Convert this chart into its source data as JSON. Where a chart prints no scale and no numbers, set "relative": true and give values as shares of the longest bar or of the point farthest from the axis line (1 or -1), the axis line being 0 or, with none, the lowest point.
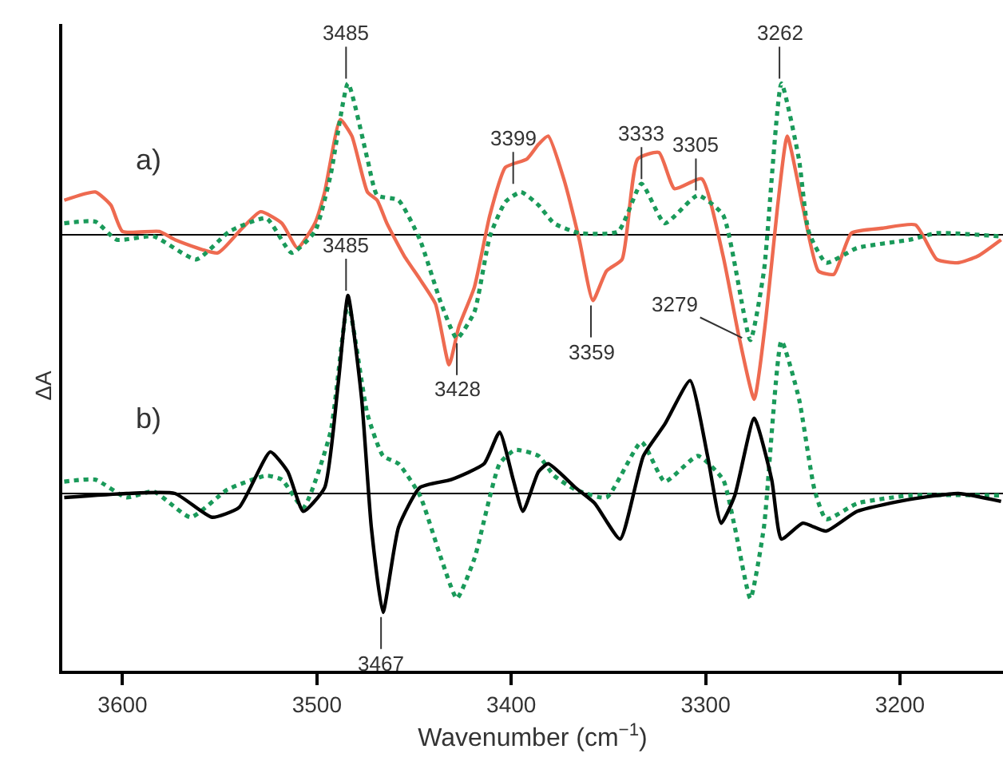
{
  "chart_data": [
    {
      "type": "line",
      "relative": true,
      "ylabel": "ΔA",
      "xlim": [
        3631,
        3147
      ],
      "tick_labels": false,
      "annotations": [
        "a)",
        {
          "text": "3485",
          "x": 3485,
          "y": 0.92
        },
        {
          "text": "3399",
          "x": 3399,
          "y": 0.28
        },
        {
          "text": "3333",
          "x": 3333,
          "y": 0.31
        },
        {
          "text": "3305",
          "x": 3305,
          "y": 0.24
        },
        {
          "text": "3262",
          "x": 3262,
          "y": 0.92
        },
        {
          "text": "3428",
          "x": 3428,
          "y": -0.63
        },
        {
          "text": "3359",
          "x": 3359,
          "y": -0.4
        },
        {
          "text": "3279",
          "x": 3279,
          "y": -0.64
        }
      ],
      "series": [
        {
          "color": "#ee6a50",
          "line_style": "solid",
          "x": [
            3630,
            3614,
            3606,
            3600,
            3581,
            3573,
            3551,
            3540,
            3529,
            3518,
            3510,
            3501,
            3496,
            3488,
            3482,
            3474,
            3469,
            3464,
            3455,
            3447,
            3439,
            3432,
            3427,
            3419,
            3411,
            3403,
            3392,
            3386,
            3381,
            3373,
            3365,
            3358,
            3351,
            3343,
            3335,
            3324,
            3316,
            3302,
            3291,
            3283,
            3275,
            3269,
            3263,
            3258,
            3250,
            3242,
            3234,
            3225,
            3209,
            3192,
            3181,
            3170,
            3160,
            3148
          ],
          "values": [
            0.21,
            0.26,
            0.18,
            0.02,
            0.02,
            -0.03,
            -0.11,
            0.02,
            0.14,
            0.07,
            -0.08,
            0.07,
            0.26,
            0.7,
            0.6,
            0.26,
            0.21,
            0.07,
            -0.13,
            -0.27,
            -0.42,
            -0.79,
            -0.56,
            -0.32,
            0.12,
            0.41,
            0.46,
            0.55,
            0.6,
            0.34,
            -0.03,
            -0.4,
            -0.22,
            -0.15,
            0.46,
            0.5,
            0.28,
            0.34,
            -0.13,
            -0.61,
            -1,
            -0.51,
            0.17,
            0.6,
            0.17,
            -0.22,
            -0.24,
            0.01,
            0.04,
            0.06,
            -0.15,
            -0.17,
            -0.13,
            -0.03
          ]
        },
        {
          "color": "#1a9a5a",
          "line_style": "dotted",
          "x": [
            3630,
            3614,
            3603,
            3584,
            3562,
            3545,
            3526,
            3513,
            3501,
            3493,
            3484,
            3474,
            3469,
            3458,
            3447,
            3436,
            3428,
            3419,
            3411,
            3403,
            3395,
            3386,
            3378,
            3365,
            3345,
            3333,
            3321,
            3304,
            3291,
            3277,
            3270,
            3261,
            3252,
            3247,
            3238,
            3222,
            3195,
            3181,
            3148
          ],
          "values": [
            0.07,
            0.08,
            -0.03,
            -0.01,
            -0.15,
            0.02,
            0.1,
            -0.11,
            0.02,
            0.36,
            0.92,
            0.46,
            0.24,
            0.21,
            -0.03,
            -0.42,
            -0.63,
            -0.47,
            -0.01,
            0.2,
            0.26,
            0.18,
            0.07,
            0.01,
            0.02,
            0.31,
            0.07,
            0.24,
            0.12,
            -0.64,
            -0.22,
            0.92,
            0.46,
            0.02,
            -0.17,
            -0.08,
            -0.03,
            0.01,
            -0.01
          ]
        }
      ]
    },
    {
      "type": "line",
      "relative": true,
      "xlabel": "Wavenumber (cm$^{−1}$)",
      "xlim": [
        3631,
        3147
      ],
      "xticks": [
        3600,
        3500,
        3400,
        3300,
        3200
      ],
      "tick_labels": "x",
      "annotations": [
        "b)",
        {
          "text": "3485",
          "x": 3485,
          "y": 1
        },
        {
          "text": "3467",
          "x": 3467,
          "y": -0.6
        }
      ],
      "series": [
        {
          "color": "#1a9a5a",
          "line_style": "dotted",
          "x": [
            3630,
            3614,
            3598,
            3584,
            3565,
            3546,
            3526,
            3518,
            3507,
            3493,
            3484,
            3474,
            3466,
            3458,
            3447,
            3436,
            3428,
            3419,
            3406,
            3398,
            3386,
            3378,
            3367,
            3351,
            3333,
            3321,
            3304,
            3291,
            3285,
            3277,
            3270,
            3261,
            3252,
            3244,
            3238,
            3222,
            3195,
            3148
          ],
          "values": [
            0.06,
            0.07,
            -0.02,
            0.01,
            -0.12,
            0.02,
            0.09,
            0.07,
            -0.07,
            0.31,
            0.96,
            0.4,
            0.19,
            0.15,
            -0.01,
            -0.33,
            -0.53,
            -0.33,
            0.15,
            0.22,
            0.19,
            0.09,
            0.02,
            -0.02,
            0.26,
            0.06,
            0.19,
            0.07,
            -0.17,
            -0.53,
            -0.17,
            0.77,
            0.48,
            0.02,
            -0.13,
            -0.05,
            -0.01,
            -0.01
          ]
        },
        {
          "color": "#000000",
          "line_style": "solid",
          "x": [
            3630,
            3598,
            3573,
            3554,
            3540,
            3524,
            3515,
            3507,
            3496,
            3489,
            3484,
            3477,
            3472,
            3466,
            3458,
            3447,
            3431,
            3414,
            3406,
            3399,
            3394,
            3386,
            3381,
            3367,
            3357,
            3344,
            3332,
            3321,
            3308,
            3299,
            3292,
            3285,
            3275,
            3266,
            3261,
            3250,
            3238,
            3222,
            3195,
            3170,
            3148
          ],
          "values": [
            -0.02,
            0,
            0,
            -0.12,
            -0.07,
            0.21,
            0.11,
            -0.09,
            0.03,
            0.56,
            1,
            0.48,
            -0.17,
            -0.6,
            -0.17,
            0.03,
            0.07,
            0.15,
            0.31,
            0.07,
            -0.09,
            0.11,
            0.15,
            0.03,
            -0.05,
            -0.23,
            0.19,
            0.35,
            0.57,
            0.19,
            -0.15,
            -0.01,
            0.38,
            0.07,
            -0.23,
            -0.15,
            -0.19,
            -0.09,
            -0.03,
            0,
            -0.04
          ]
        }
      ]
    }
  ]
}
